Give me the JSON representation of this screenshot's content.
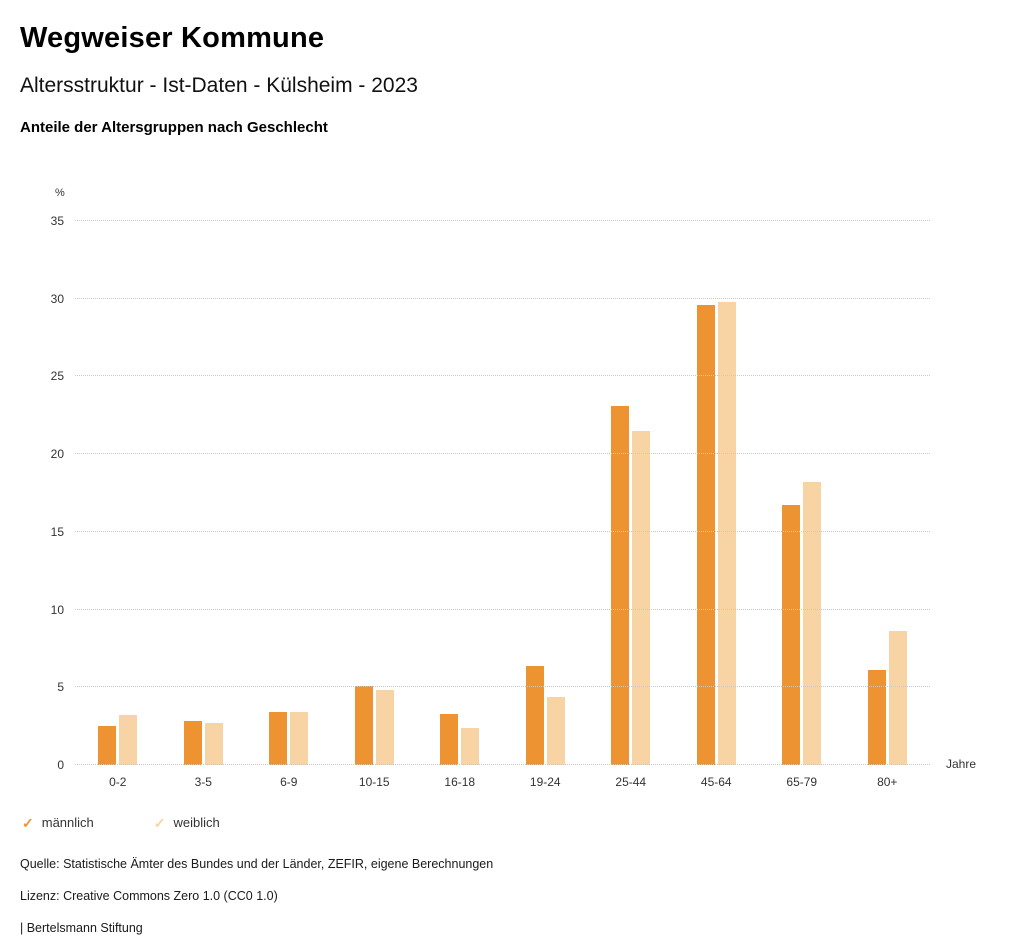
{
  "header": {
    "title": "Wegweiser Kommune",
    "subtitle": "Altersstruktur - Ist-Daten - Külsheim - 2023",
    "heading": "Anteile der Altersgruppen nach Geschlecht"
  },
  "chart_data": {
    "type": "bar",
    "title": "Anteile der Altersgruppen nach Geschlecht",
    "unit": "%",
    "x_unit": "Jahre",
    "categories": [
      "0-2",
      "3-5",
      "6-9",
      "10-15",
      "16-18",
      "19-24",
      "25-44",
      "45-64",
      "65-79",
      "80+"
    ],
    "series": [
      {
        "name": "männlich",
        "color": "#ee9331",
        "values": [
          2.5,
          2.8,
          3.4,
          5.1,
          3.3,
          6.4,
          23.1,
          29.6,
          16.7,
          6.1
        ]
      },
      {
        "name": "weiblich",
        "color": "#f8d3a3",
        "values": [
          3.2,
          2.7,
          3.4,
          4.8,
          2.4,
          4.4,
          21.5,
          29.8,
          18.2,
          8.6
        ]
      }
    ],
    "ylim": [
      0,
      35
    ],
    "yticks": [
      0,
      5,
      10,
      15,
      20,
      25,
      30,
      35
    ],
    "grid": true,
    "gridline_color": "#c9c9c9",
    "legend_position": "bottom"
  },
  "legend": {
    "check_icon": "✓"
  },
  "footer": {
    "source": "Quelle: Statistische Ämter des Bundes und der Länder, ZEFIR, eigene Berechnungen",
    "license": "Lizenz: Creative Commons Zero 1.0 (CC0 1.0)",
    "attribution": "| Bertelsmann Stiftung"
  }
}
